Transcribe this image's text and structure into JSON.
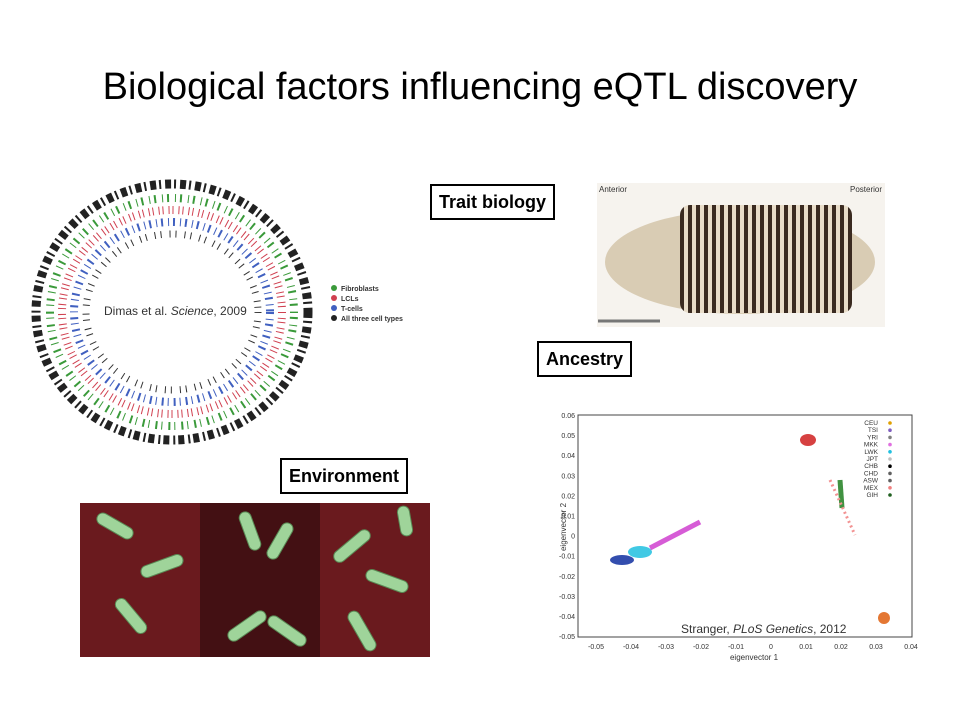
{
  "slide": {
    "title": "Biological factors influencing eQTL discovery",
    "labels": {
      "trait_biology": "Trait biology",
      "ancestry": "Ancestry",
      "environment": "Environment"
    },
    "citations": {
      "dimas": {
        "before": "Dimas et al. ",
        "journal": "Science",
        "after": ", 2009"
      },
      "stranger": {
        "before": "Stranger, ",
        "journal": "PLoS Genetics",
        "after": ", 2012"
      }
    },
    "circos_legend": [
      "Fibroblasts",
      "LCLs",
      "T-cells",
      "All three cell types"
    ],
    "embryo": {
      "left": "Anterior",
      "right": "Posterior"
    },
    "scatter": {
      "xlabel": "eigenvector 1",
      "ylabel": "eigenvector 2",
      "xticks": [
        "-0.05",
        "-0.04",
        "-0.03",
        "-0.02",
        "-0.01",
        "0",
        "0.01",
        "0.02",
        "0.03",
        "0.04"
      ],
      "yticks": [
        "0.06",
        "0.05",
        "0.04",
        "0.03",
        "0.02",
        "0.01",
        "0",
        "-0.01",
        "-0.02",
        "-0.03",
        "-0.04",
        "-0.05"
      ],
      "legend": [
        "CEU",
        "TSI",
        "YRI",
        "MKK",
        "LWK",
        "JPT",
        "CHB",
        "CHD",
        "ASW",
        "MEX",
        "GIH"
      ]
    }
  }
}
